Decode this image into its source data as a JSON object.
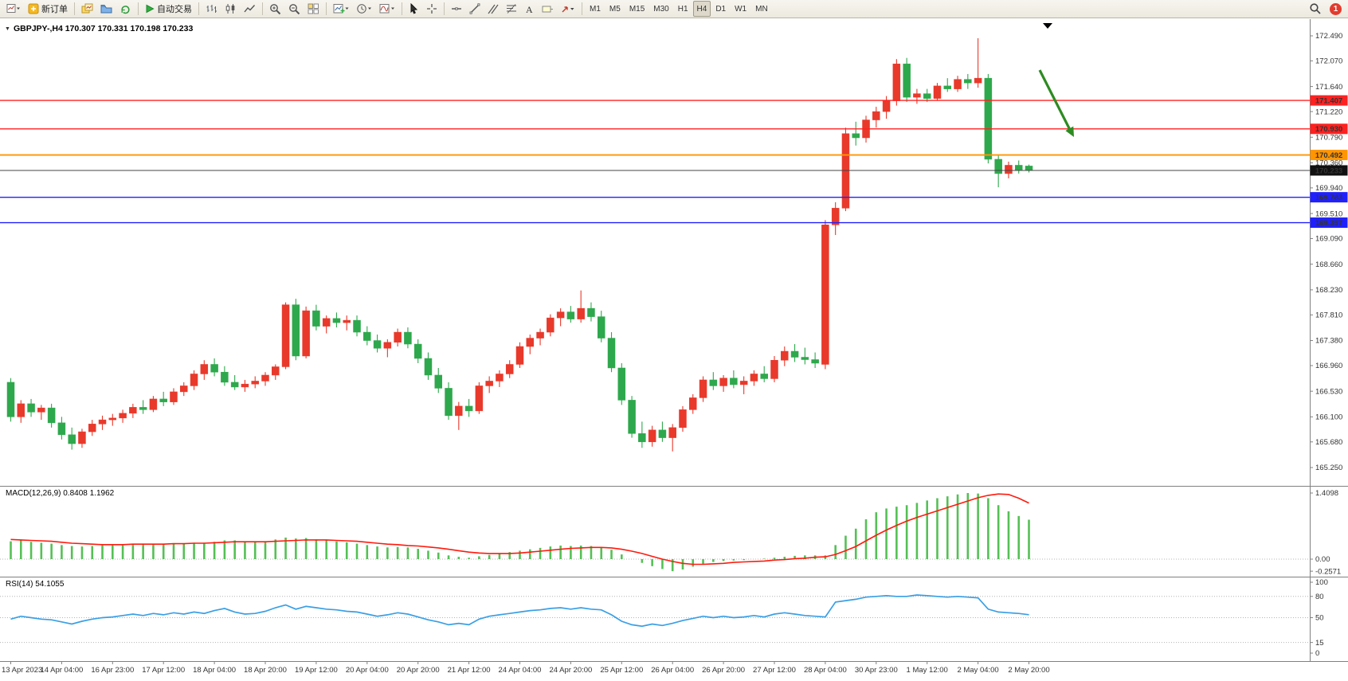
{
  "toolbar": {
    "new_order_label": "新订单",
    "auto_trading_label": "自动交易",
    "timeframe_labels": [
      "M1",
      "M5",
      "M15",
      "M30",
      "H1",
      "H4",
      "D1",
      "W1",
      "MN"
    ],
    "active_timeframe": "H4",
    "notification_badge": "1"
  },
  "chart": {
    "symbol_ohlc_label": "GBPJPY-,H4 170.307 170.331 170.198 170.233",
    "macd_label": "MACD(12,26,9) 0.8408 1.1962",
    "rsi_label": "RSI(14) 54.1055"
  },
  "chart_data": {
    "type": "candlestick",
    "symbol": "GBPJPY-",
    "timeframe": "H4",
    "current_ohlc": {
      "open": 170.307,
      "high": 170.331,
      "low": 170.198,
      "close": 170.233
    },
    "price_axis_ticks": [
      "172.490",
      "172.070",
      "171.640",
      "171.220",
      "170.790",
      "170.360",
      "169.940",
      "169.510",
      "169.090",
      "168.660",
      "168.230",
      "167.810",
      "167.380",
      "166.960",
      "166.530",
      "166.100",
      "165.680",
      "165.250"
    ],
    "time_labels": [
      "13 Apr 2023",
      "14 Apr 04:00",
      "16 Apr 23:00",
      "17 Apr 12:00",
      "18 Apr 04:00",
      "18 Apr 20:00",
      "19 Apr 12:00",
      "20 Apr 04:00",
      "20 Apr 20:00",
      "21 Apr 12:00",
      "24 Apr 04:00",
      "24 Apr 20:00",
      "25 Apr 12:00",
      "26 Apr 04:00",
      "26 Apr 20:00",
      "27 Apr 12:00",
      "28 Apr 04:00",
      "30 Apr 23:00",
      "1 May 12:00",
      "2 May 04:00",
      "2 May 20:00"
    ],
    "candles": [
      [
        166.68,
        166.75,
        166.02,
        166.1
      ],
      [
        166.1,
        166.38,
        166.0,
        166.32
      ],
      [
        166.32,
        166.4,
        166.1,
        166.18
      ],
      [
        166.18,
        166.3,
        166.05,
        166.25
      ],
      [
        166.25,
        166.32,
        165.92,
        166.0
      ],
      [
        166.0,
        166.1,
        165.72,
        165.8
      ],
      [
        165.8,
        165.92,
        165.55,
        165.65
      ],
      [
        165.65,
        165.9,
        165.58,
        165.85
      ],
      [
        165.85,
        166.05,
        165.78,
        165.98
      ],
      [
        165.98,
        166.12,
        165.88,
        166.05
      ],
      [
        166.05,
        166.15,
        165.95,
        166.08
      ],
      [
        166.08,
        166.22,
        166.0,
        166.16
      ],
      [
        166.16,
        166.32,
        166.08,
        166.26
      ],
      [
        166.26,
        166.38,
        166.15,
        166.22
      ],
      [
        166.22,
        166.45,
        166.18,
        166.4
      ],
      [
        166.4,
        166.52,
        166.28,
        166.35
      ],
      [
        166.35,
        166.58,
        166.3,
        166.52
      ],
      [
        166.52,
        166.68,
        166.45,
        166.62
      ],
      [
        166.62,
        166.88,
        166.55,
        166.82
      ],
      [
        166.82,
        167.05,
        166.72,
        166.98
      ],
      [
        166.98,
        167.08,
        166.78,
        166.85
      ],
      [
        166.85,
        166.95,
        166.62,
        166.68
      ],
      [
        166.68,
        166.8,
        166.55,
        166.6
      ],
      [
        166.6,
        166.72,
        166.52,
        166.65
      ],
      [
        166.65,
        166.78,
        166.58,
        166.7
      ],
      [
        166.7,
        166.85,
        166.62,
        166.8
      ],
      [
        166.8,
        166.98,
        166.72,
        166.94
      ],
      [
        166.94,
        168.02,
        166.9,
        167.98
      ],
      [
        167.98,
        168.08,
        167.05,
        167.12
      ],
      [
        167.12,
        167.95,
        167.08,
        167.88
      ],
      [
        167.88,
        167.98,
        167.55,
        167.62
      ],
      [
        167.62,
        167.8,
        167.5,
        167.75
      ],
      [
        167.75,
        167.85,
        167.6,
        167.68
      ],
      [
        167.68,
        167.8,
        167.55,
        167.72
      ],
      [
        167.72,
        167.8,
        167.45,
        167.52
      ],
      [
        167.52,
        167.62,
        167.3,
        167.38
      ],
      [
        167.38,
        167.48,
        167.18,
        167.25
      ],
      [
        167.25,
        167.4,
        167.1,
        167.35
      ],
      [
        167.35,
        167.58,
        167.28,
        167.52
      ],
      [
        167.52,
        167.6,
        167.25,
        167.32
      ],
      [
        167.32,
        167.4,
        167.0,
        167.08
      ],
      [
        167.08,
        167.18,
        166.72,
        166.8
      ],
      [
        166.8,
        166.92,
        166.5,
        166.58
      ],
      [
        166.58,
        166.68,
        166.05,
        166.12
      ],
      [
        166.12,
        166.35,
        165.88,
        166.28
      ],
      [
        166.28,
        166.4,
        166.1,
        166.2
      ],
      [
        166.2,
        166.68,
        166.15,
        166.62
      ],
      [
        166.62,
        166.78,
        166.5,
        166.7
      ],
      [
        166.7,
        166.88,
        166.6,
        166.82
      ],
      [
        166.82,
        167.05,
        166.75,
        166.98
      ],
      [
        166.98,
        167.35,
        166.92,
        167.28
      ],
      [
        167.28,
        167.48,
        167.15,
        167.42
      ],
      [
        167.42,
        167.58,
        167.3,
        167.52
      ],
      [
        167.52,
        167.82,
        167.45,
        167.76
      ],
      [
        167.76,
        167.92,
        167.62,
        167.86
      ],
      [
        167.86,
        167.96,
        167.68,
        167.74
      ],
      [
        167.74,
        168.22,
        167.68,
        167.92
      ],
      [
        167.92,
        168.02,
        167.7,
        167.78
      ],
      [
        167.78,
        167.88,
        167.35,
        167.42
      ],
      [
        167.42,
        167.52,
        166.85,
        166.92
      ],
      [
        166.92,
        167.0,
        166.3,
        166.38
      ],
      [
        166.38,
        166.45,
        165.75,
        165.82
      ],
      [
        165.82,
        166.02,
        165.58,
        165.68
      ],
      [
        165.68,
        165.95,
        165.6,
        165.88
      ],
      [
        165.88,
        166.02,
        165.68,
        165.75
      ],
      [
        165.75,
        165.98,
        165.52,
        165.92
      ],
      [
        165.92,
        166.28,
        165.85,
        166.22
      ],
      [
        166.22,
        166.48,
        166.15,
        166.42
      ],
      [
        166.42,
        166.78,
        166.35,
        166.72
      ],
      [
        166.72,
        166.85,
        166.55,
        166.62
      ],
      [
        166.62,
        166.8,
        166.52,
        166.75
      ],
      [
        166.75,
        166.88,
        166.58,
        166.64
      ],
      [
        166.64,
        166.78,
        166.48,
        166.7
      ],
      [
        166.7,
        166.88,
        166.62,
        166.82
      ],
      [
        166.82,
        166.95,
        166.68,
        166.74
      ],
      [
        166.74,
        167.12,
        166.68,
        167.05
      ],
      [
        167.05,
        167.28,
        166.95,
        167.2
      ],
      [
        167.2,
        167.32,
        167.02,
        167.1
      ],
      [
        167.1,
        167.26,
        166.98,
        167.06
      ],
      [
        167.06,
        167.18,
        166.92,
        167.0
      ],
      [
        166.98,
        169.4,
        166.9,
        169.32
      ],
      [
        169.32,
        169.7,
        169.15,
        169.6
      ],
      [
        169.6,
        170.95,
        169.55,
        170.85
      ],
      [
        170.85,
        171.05,
        170.65,
        170.78
      ],
      [
        170.78,
        171.15,
        170.7,
        171.08
      ],
      [
        171.08,
        171.3,
        170.95,
        171.22
      ],
      [
        171.22,
        171.48,
        171.1,
        171.4
      ],
      [
        171.4,
        172.1,
        171.32,
        172.02
      ],
      [
        172.02,
        172.12,
        171.38,
        171.46
      ],
      [
        171.46,
        171.6,
        171.35,
        171.52
      ],
      [
        171.52,
        171.6,
        171.38,
        171.44
      ],
      [
        171.44,
        171.7,
        171.4,
        171.65
      ],
      [
        171.65,
        171.78,
        171.55,
        171.6
      ],
      [
        171.6,
        171.82,
        171.55,
        171.76
      ],
      [
        171.76,
        171.85,
        171.6,
        171.7
      ],
      [
        171.7,
        172.45,
        171.62,
        171.78
      ],
      [
        171.78,
        171.85,
        170.35,
        170.42
      ],
      [
        170.42,
        170.48,
        169.95,
        170.18
      ],
      [
        170.18,
        170.38,
        170.1,
        170.32
      ],
      [
        170.32,
        170.4,
        170.18,
        170.24
      ],
      [
        170.307,
        170.331,
        170.198,
        170.233
      ]
    ],
    "levels": [
      {
        "price": 171.407,
        "label": "171.407",
        "color": "#FF2020",
        "kind": "resistance"
      },
      {
        "price": 170.93,
        "label": "170.930",
        "color": "#FF2020",
        "kind": "resistance"
      },
      {
        "price": 170.492,
        "label": "170.492",
        "color": "#FF9500",
        "kind": "pivot"
      },
      {
        "price": 169.783,
        "label": "169.783",
        "color": "#2020FF",
        "kind": "support"
      },
      {
        "price": 169.357,
        "label": "169.357",
        "color": "#2020FF",
        "kind": "support"
      }
    ],
    "bid": {
      "price": 170.233,
      "label": "170.233",
      "color": "#111111"
    },
    "annotations": [
      {
        "type": "arrow",
        "direction": "down-right",
        "color": "#2E8B22"
      }
    ],
    "indicators": {
      "macd": {
        "title": "MACD(12,26,9)",
        "main_last": 0.8408,
        "signal_last": 1.1962,
        "axis_ticks": [
          "1.4098",
          "0.00",
          "-0.2571"
        ],
        "range": [
          -0.2571,
          1.4098
        ],
        "hist_color": "#55C055",
        "signal_color": "#FF1A0E",
        "histogram": [
          0.38,
          0.4,
          0.37,
          0.35,
          0.33,
          0.3,
          0.28,
          0.27,
          0.28,
          0.3,
          0.31,
          0.32,
          0.33,
          0.32,
          0.33,
          0.32,
          0.33,
          0.34,
          0.35,
          0.35,
          0.37,
          0.4,
          0.4,
          0.38,
          0.36,
          0.37,
          0.42,
          0.46,
          0.44,
          0.45,
          0.42,
          0.4,
          0.38,
          0.36,
          0.33,
          0.3,
          0.27,
          0.25,
          0.26,
          0.25,
          0.22,
          0.18,
          0.14,
          0.08,
          0.05,
          0.03,
          0.06,
          0.09,
          0.12,
          0.15,
          0.18,
          0.21,
          0.24,
          0.27,
          0.29,
          0.28,
          0.29,
          0.28,
          0.26,
          0.2,
          0.1,
          0.0,
          -0.08,
          -0.15,
          -0.21,
          -0.257,
          -0.22,
          -0.16,
          -0.1,
          -0.06,
          -0.04,
          -0.03,
          -0.02,
          0.0,
          0.01,
          0.03,
          0.05,
          0.07,
          0.08,
          0.08,
          0.08,
          0.3,
          0.5,
          0.65,
          0.85,
          1.0,
          1.08,
          1.12,
          1.15,
          1.2,
          1.25,
          1.3,
          1.34,
          1.38,
          1.41,
          1.4,
          1.3,
          1.15,
          1.02,
          0.92,
          0.8408
        ],
        "signal": [
          0.42,
          0.41,
          0.4,
          0.39,
          0.38,
          0.36,
          0.34,
          0.33,
          0.32,
          0.31,
          0.31,
          0.31,
          0.32,
          0.32,
          0.32,
          0.32,
          0.33,
          0.33,
          0.34,
          0.34,
          0.35,
          0.36,
          0.37,
          0.37,
          0.37,
          0.37,
          0.38,
          0.39,
          0.4,
          0.41,
          0.41,
          0.41,
          0.4,
          0.39,
          0.38,
          0.36,
          0.34,
          0.32,
          0.31,
          0.29,
          0.28,
          0.26,
          0.24,
          0.21,
          0.18,
          0.15,
          0.13,
          0.12,
          0.12,
          0.12,
          0.13,
          0.15,
          0.17,
          0.19,
          0.21,
          0.23,
          0.24,
          0.25,
          0.25,
          0.24,
          0.21,
          0.17,
          0.12,
          0.06,
          0.0,
          -0.05,
          -0.09,
          -0.11,
          -0.11,
          -0.1,
          -0.09,
          -0.07,
          -0.06,
          -0.05,
          -0.04,
          -0.02,
          -0.01,
          0.01,
          0.02,
          0.04,
          0.05,
          0.1,
          0.18,
          0.27,
          0.39,
          0.51,
          0.62,
          0.72,
          0.81,
          0.89,
          0.96,
          1.03,
          1.1,
          1.17,
          1.24,
          1.31,
          1.36,
          1.39,
          1.38,
          1.3,
          1.1962
        ]
      },
      "rsi": {
        "title": "RSI(14)",
        "last": 54.1055,
        "axis_ticks": [
          "100",
          "80",
          "50",
          "15",
          "0"
        ],
        "levels": [
          80,
          50,
          15
        ],
        "range": [
          0,
          100
        ],
        "line_color": "#3A9FE5",
        "values": [
          48,
          52,
          50,
          48,
          47,
          44,
          41,
          45,
          48,
          50,
          51,
          53,
          55,
          53,
          56,
          54,
          57,
          55,
          58,
          56,
          60,
          63,
          58,
          55,
          56,
          59,
          64,
          68,
          62,
          66,
          64,
          62,
          61,
          59,
          58,
          55,
          52,
          54,
          57,
          55,
          51,
          47,
          44,
          40,
          42,
          40,
          48,
          52,
          54,
          56,
          58,
          60,
          61,
          63,
          64,
          62,
          64,
          62,
          61,
          54,
          45,
          40,
          38,
          41,
          39,
          42,
          46,
          49,
          52,
          50,
          52,
          50,
          51,
          53,
          51,
          55,
          57,
          55,
          53,
          52,
          51,
          72,
          74,
          76,
          79,
          80,
          81,
          80,
          80,
          82,
          81,
          80,
          79,
          80,
          79,
          78,
          62,
          58,
          57,
          56,
          54.1055
        ]
      }
    },
    "colors": {
      "bull": "#E8392B",
      "bear": "#2EA84C",
      "background": "#FFFFFF",
      "axis_text": "#333333"
    }
  }
}
